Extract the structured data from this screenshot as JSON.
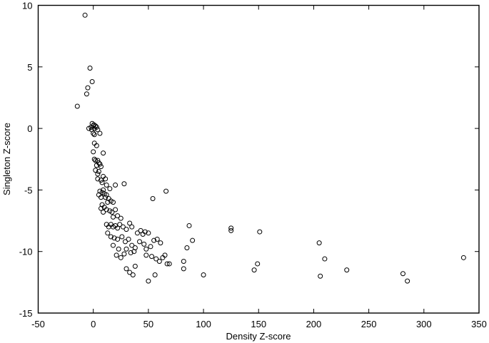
{
  "chart_data": {
    "type": "scatter",
    "title": "",
    "xlabel": "Density Z-score",
    "ylabel": "Singleton Z-score",
    "xlim": [
      -50,
      350
    ],
    "ylim": [
      -15,
      10
    ],
    "xticks": [
      -50,
      0,
      50,
      100,
      150,
      200,
      250,
      300,
      350
    ],
    "yticks": [
      -15,
      -10,
      -5,
      0,
      5,
      10
    ],
    "grid": false,
    "legend": null,
    "marker": "open-circle",
    "marker_color": "#000000",
    "points": [
      [
        -7.5,
        9.2
      ],
      [
        -3,
        4.9
      ],
      [
        -1,
        3.8
      ],
      [
        -5,
        3.3
      ],
      [
        -6,
        2.8
      ],
      [
        -14.5,
        1.8
      ],
      [
        -1,
        0.4
      ],
      [
        0.5,
        0.3
      ],
      [
        2,
        0.2
      ],
      [
        -2,
        0.1
      ],
      [
        1,
        0.0
      ],
      [
        3,
        0.1
      ],
      [
        -4,
        0.0
      ],
      [
        0,
        0.2
      ],
      [
        -1.5,
        -0.1
      ],
      [
        4,
        -0.1
      ],
      [
        0,
        -0.4
      ],
      [
        6,
        -0.4
      ],
      [
        1,
        -0.5
      ],
      [
        1,
        -1.2
      ],
      [
        3,
        -1.4
      ],
      [
        0,
        -1.9
      ],
      [
        9,
        -2.0
      ],
      [
        1,
        -2.5
      ],
      [
        2,
        -2.6
      ],
      [
        4,
        -2.6
      ],
      [
        5,
        -2.8
      ],
      [
        6,
        -2.9
      ],
      [
        3,
        -3.0
      ],
      [
        7,
        -3.1
      ],
      [
        2,
        -3.4
      ],
      [
        5,
        -3.5
      ],
      [
        4,
        -3.7
      ],
      [
        4,
        -4.1
      ],
      [
        9,
        -3.9
      ],
      [
        7,
        -4.2
      ],
      [
        11,
        -4.1
      ],
      [
        8,
        -4.4
      ],
      [
        12,
        -4.6
      ],
      [
        15,
        -4.9
      ],
      [
        20,
        -4.6
      ],
      [
        28,
        -4.5
      ],
      [
        6,
        -5.1
      ],
      [
        8,
        -5.2
      ],
      [
        9,
        -5.0
      ],
      [
        10,
        -5.3
      ],
      [
        12,
        -5.4
      ],
      [
        5,
        -5.4
      ],
      [
        7,
        -5.6
      ],
      [
        11,
        -5.6
      ],
      [
        14,
        -5.7
      ],
      [
        16,
        -5.9
      ],
      [
        13,
        -6.0
      ],
      [
        18,
        -6.0
      ],
      [
        8,
        -6.2
      ],
      [
        10,
        -6.4
      ],
      [
        7,
        -6.5
      ],
      [
        12,
        -6.6
      ],
      [
        9,
        -6.8
      ],
      [
        15,
        -6.7
      ],
      [
        17,
        -6.8
      ],
      [
        20,
        -6.6
      ],
      [
        22,
        -7.1
      ],
      [
        18,
        -7.2
      ],
      [
        25,
        -7.3
      ],
      [
        12,
        -7.8
      ],
      [
        14,
        -8.0
      ],
      [
        16,
        -7.8
      ],
      [
        18,
        -8.0
      ],
      [
        20,
        -7.9
      ],
      [
        24,
        -7.8
      ],
      [
        22,
        -8.1
      ],
      [
        27,
        -8.0
      ],
      [
        30,
        -8.2
      ],
      [
        33,
        -7.7
      ],
      [
        35,
        -8.0
      ],
      [
        13,
        -8.5
      ],
      [
        16,
        -8.8
      ],
      [
        19,
        -8.9
      ],
      [
        22,
        -9.0
      ],
      [
        26,
        -8.8
      ],
      [
        29,
        -9.2
      ],
      [
        32,
        -9.0
      ],
      [
        35,
        -9.5
      ],
      [
        38,
        -9.7
      ],
      [
        30,
        -9.8
      ],
      [
        34,
        -10.1
      ],
      [
        37,
        -10.0
      ],
      [
        18,
        -9.5
      ],
      [
        23,
        -9.8
      ],
      [
        21,
        -10.3
      ],
      [
        25,
        -10.5
      ],
      [
        28,
        -10.2
      ],
      [
        40,
        -8.5
      ],
      [
        43,
        -8.3
      ],
      [
        45,
        -8.6
      ],
      [
        47,
        -8.4
      ],
      [
        50,
        -8.5
      ],
      [
        42,
        -9.2
      ],
      [
        46,
        -9.4
      ],
      [
        48,
        -9.8
      ],
      [
        52,
        -9.6
      ],
      [
        55,
        -9.1
      ],
      [
        58,
        -9.0
      ],
      [
        61,
        -9.3
      ],
      [
        38,
        -11.2
      ],
      [
        33,
        -11.7
      ],
      [
        36,
        -11.9
      ],
      [
        30,
        -11.4
      ],
      [
        48,
        -10.3
      ],
      [
        53,
        -10.4
      ],
      [
        57,
        -10.6
      ],
      [
        60,
        -10.8
      ],
      [
        63,
        -10.5
      ],
      [
        65,
        -10.3
      ],
      [
        67,
        -11.0
      ],
      [
        54,
        -5.7
      ],
      [
        66,
        -5.1
      ],
      [
        87,
        -7.9
      ],
      [
        125,
        -8.1
      ],
      [
        125,
        -8.3
      ],
      [
        90,
        -9.1
      ],
      [
        85,
        -9.7
      ],
      [
        82,
        -10.8
      ],
      [
        82,
        -11.4
      ],
      [
        100,
        -11.9
      ],
      [
        50,
        -12.4
      ],
      [
        56,
        -11.9
      ],
      [
        69,
        -11.0
      ],
      [
        151,
        -8.4
      ],
      [
        149,
        -11.0
      ],
      [
        146,
        -11.5
      ],
      [
        205,
        -9.3
      ],
      [
        210,
        -10.6
      ],
      [
        206,
        -12.0
      ],
      [
        230,
        -11.5
      ],
      [
        281,
        -11.8
      ],
      [
        285,
        -12.4
      ],
      [
        336,
        -10.5
      ]
    ]
  },
  "axes": {
    "x_label": "Density Z-score",
    "y_label": "Singleton Z-score",
    "x_tick_labels": [
      "-50",
      "0",
      "50",
      "100",
      "150",
      "200",
      "250",
      "300",
      "350"
    ],
    "y_tick_labels": [
      "-15",
      "-10",
      "-5",
      "0",
      "5",
      "10"
    ]
  }
}
